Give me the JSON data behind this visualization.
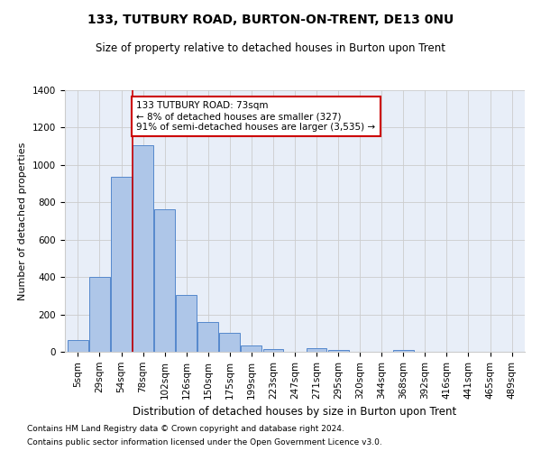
{
  "title": "133, TUTBURY ROAD, BURTON-ON-TRENT, DE13 0NU",
  "subtitle": "Size of property relative to detached houses in Burton upon Trent",
  "xlabel": "Distribution of detached houses by size in Burton upon Trent",
  "ylabel": "Number of detached properties",
  "footnote1": "Contains HM Land Registry data © Crown copyright and database right 2024.",
  "footnote2": "Contains public sector information licensed under the Open Government Licence v3.0.",
  "bar_labels": [
    "5sqm",
    "29sqm",
    "54sqm",
    "78sqm",
    "102sqm",
    "126sqm",
    "150sqm",
    "175sqm",
    "199sqm",
    "223sqm",
    "247sqm",
    "271sqm",
    "295sqm",
    "320sqm",
    "344sqm",
    "368sqm",
    "392sqm",
    "416sqm",
    "441sqm",
    "465sqm",
    "489sqm"
  ],
  "bar_heights": [
    65,
    400,
    935,
    1105,
    765,
    305,
    160,
    100,
    35,
    15,
    0,
    20,
    10,
    0,
    0,
    10,
    0,
    0,
    0,
    0,
    0
  ],
  "bar_color": "#aec6e8",
  "bar_edge_color": "#5588cc",
  "bg_color": "#e8eef8",
  "grid_color": "#cccccc",
  "vline_index": 3,
  "vline_color": "#cc0000",
  "annotation_line1": "133 TUTBURY ROAD: 73sqm",
  "annotation_line2": "← 8% of detached houses are smaller (327)",
  "annotation_line3": "91% of semi-detached houses are larger (3,535) →",
  "annotation_box_color": "#cc0000",
  "ylim": [
    0,
    1400
  ],
  "yticks": [
    0,
    200,
    400,
    600,
    800,
    1000,
    1200,
    1400
  ],
  "title_fontsize": 10,
  "subtitle_fontsize": 8.5,
  "ylabel_fontsize": 8,
  "xlabel_fontsize": 8.5,
  "tick_fontsize": 7.5,
  "footnote_fontsize": 6.5
}
